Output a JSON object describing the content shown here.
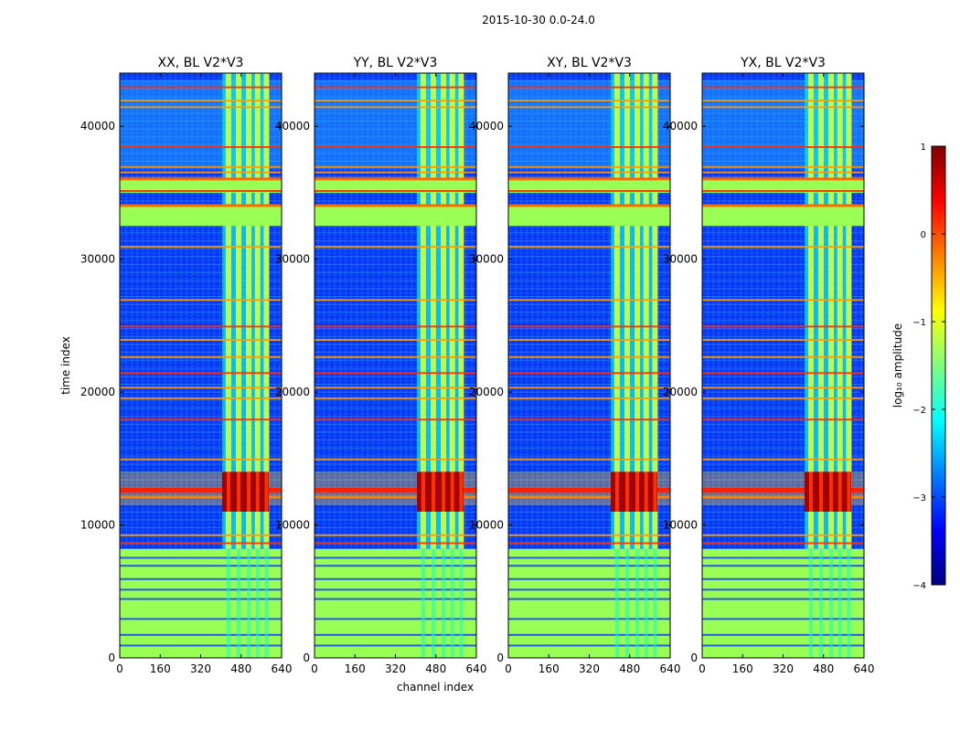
{
  "figure": {
    "suptitle": "2015-10-30 0.0-24.0"
  },
  "chart_data": [
    {
      "type": "heatmap",
      "title": "XX, BL V2*V3",
      "xlabel": "",
      "ylabel": "time index",
      "xlim": [
        0,
        640
      ],
      "ylim": [
        0,
        44000
      ],
      "xticks": [
        0,
        160,
        320,
        480,
        640
      ],
      "yticks": [
        0,
        10000,
        20000,
        30000,
        40000
      ]
    },
    {
      "type": "heatmap",
      "title": "YY, BL V2*V3",
      "xlabel": "channel index",
      "ylabel": "",
      "xlim": [
        0,
        640
      ],
      "ylim": [
        0,
        44000
      ],
      "xticks": [
        0,
        160,
        320,
        480,
        640
      ],
      "yticks": [
        0,
        10000,
        20000,
        30000,
        40000
      ]
    },
    {
      "type": "heatmap",
      "title": "XY, BL V2*V3",
      "xlabel": "",
      "ylabel": "",
      "xlim": [
        0,
        640
      ],
      "ylim": [
        0,
        44000
      ],
      "xticks": [
        0,
        160,
        320,
        480,
        640
      ],
      "yticks": [
        0,
        10000,
        20000,
        30000,
        40000
      ]
    },
    {
      "type": "heatmap",
      "title": "YX, BL V2*V3",
      "xlabel": "",
      "ylabel": "",
      "xlim": [
        0,
        640
      ],
      "ylim": [
        0,
        44000
      ],
      "xticks": [
        0,
        160,
        320,
        480,
        640
      ],
      "yticks": [
        0,
        10000,
        20000,
        30000,
        40000
      ]
    }
  ],
  "colorbar": {
    "label": "log₁₀ amplitude",
    "range": [
      -4,
      1
    ],
    "ticks": [
      1,
      0,
      -1,
      -2,
      -3,
      -4
    ],
    "colormap": [
      "#00007f",
      "#0000ff",
      "#007fff",
      "#00ffff",
      "#7fff7f",
      "#ffff00",
      "#ff7f00",
      "#ff0000",
      "#7f0000"
    ]
  },
  "features": {
    "bright_channel_band": [
      405,
      590
    ],
    "bright_channel_lines": [
      430,
      470,
      510,
      545,
      580
    ],
    "flagged_low_time_block": [
      0,
      8200
    ],
    "flagged_time_blocks": [
      [
        32500,
        34000
      ],
      [
        35000,
        36000
      ]
    ],
    "rfi_event_time": [
      11500,
      14000
    ],
    "flagged_time_rows": [
      8700,
      9300,
      15000,
      18000,
      19600,
      20400,
      21500,
      22700,
      24000,
      25000,
      27000,
      31000,
      35200,
      36600,
      37000,
      38500,
      41500,
      42000,
      43000
    ]
  }
}
